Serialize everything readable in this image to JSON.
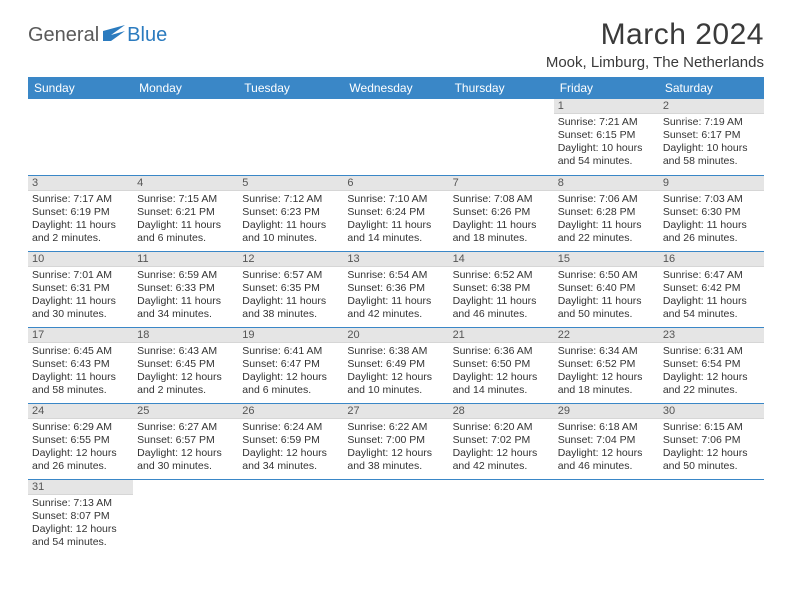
{
  "brand": {
    "part1": "General",
    "part2": "Blue"
  },
  "title": "March 2024",
  "location": "Mook, Limburg, The Netherlands",
  "colors": {
    "header_bg": "#3a87c7",
    "header_fg": "#ffffff",
    "daynum_bg": "#e5e5e5",
    "row_divider": "#3a87c7",
    "brand_gray": "#5a5a5a",
    "brand_blue": "#2b7bbf"
  },
  "weekdays": [
    "Sunday",
    "Monday",
    "Tuesday",
    "Wednesday",
    "Thursday",
    "Friday",
    "Saturday"
  ],
  "weeks": [
    [
      null,
      null,
      null,
      null,
      null,
      {
        "n": "1",
        "sr": "Sunrise: 7:21 AM",
        "ss": "Sunset: 6:15 PM",
        "dl1": "Daylight: 10 hours",
        "dl2": "and 54 minutes."
      },
      {
        "n": "2",
        "sr": "Sunrise: 7:19 AM",
        "ss": "Sunset: 6:17 PM",
        "dl1": "Daylight: 10 hours",
        "dl2": "and 58 minutes."
      }
    ],
    [
      {
        "n": "3",
        "sr": "Sunrise: 7:17 AM",
        "ss": "Sunset: 6:19 PM",
        "dl1": "Daylight: 11 hours",
        "dl2": "and 2 minutes."
      },
      {
        "n": "4",
        "sr": "Sunrise: 7:15 AM",
        "ss": "Sunset: 6:21 PM",
        "dl1": "Daylight: 11 hours",
        "dl2": "and 6 minutes."
      },
      {
        "n": "5",
        "sr": "Sunrise: 7:12 AM",
        "ss": "Sunset: 6:23 PM",
        "dl1": "Daylight: 11 hours",
        "dl2": "and 10 minutes."
      },
      {
        "n": "6",
        "sr": "Sunrise: 7:10 AM",
        "ss": "Sunset: 6:24 PM",
        "dl1": "Daylight: 11 hours",
        "dl2": "and 14 minutes."
      },
      {
        "n": "7",
        "sr": "Sunrise: 7:08 AM",
        "ss": "Sunset: 6:26 PM",
        "dl1": "Daylight: 11 hours",
        "dl2": "and 18 minutes."
      },
      {
        "n": "8",
        "sr": "Sunrise: 7:06 AM",
        "ss": "Sunset: 6:28 PM",
        "dl1": "Daylight: 11 hours",
        "dl2": "and 22 minutes."
      },
      {
        "n": "9",
        "sr": "Sunrise: 7:03 AM",
        "ss": "Sunset: 6:30 PM",
        "dl1": "Daylight: 11 hours",
        "dl2": "and 26 minutes."
      }
    ],
    [
      {
        "n": "10",
        "sr": "Sunrise: 7:01 AM",
        "ss": "Sunset: 6:31 PM",
        "dl1": "Daylight: 11 hours",
        "dl2": "and 30 minutes."
      },
      {
        "n": "11",
        "sr": "Sunrise: 6:59 AM",
        "ss": "Sunset: 6:33 PM",
        "dl1": "Daylight: 11 hours",
        "dl2": "and 34 minutes."
      },
      {
        "n": "12",
        "sr": "Sunrise: 6:57 AM",
        "ss": "Sunset: 6:35 PM",
        "dl1": "Daylight: 11 hours",
        "dl2": "and 38 minutes."
      },
      {
        "n": "13",
        "sr": "Sunrise: 6:54 AM",
        "ss": "Sunset: 6:36 PM",
        "dl1": "Daylight: 11 hours",
        "dl2": "and 42 minutes."
      },
      {
        "n": "14",
        "sr": "Sunrise: 6:52 AM",
        "ss": "Sunset: 6:38 PM",
        "dl1": "Daylight: 11 hours",
        "dl2": "and 46 minutes."
      },
      {
        "n": "15",
        "sr": "Sunrise: 6:50 AM",
        "ss": "Sunset: 6:40 PM",
        "dl1": "Daylight: 11 hours",
        "dl2": "and 50 minutes."
      },
      {
        "n": "16",
        "sr": "Sunrise: 6:47 AM",
        "ss": "Sunset: 6:42 PM",
        "dl1": "Daylight: 11 hours",
        "dl2": "and 54 minutes."
      }
    ],
    [
      {
        "n": "17",
        "sr": "Sunrise: 6:45 AM",
        "ss": "Sunset: 6:43 PM",
        "dl1": "Daylight: 11 hours",
        "dl2": "and 58 minutes."
      },
      {
        "n": "18",
        "sr": "Sunrise: 6:43 AM",
        "ss": "Sunset: 6:45 PM",
        "dl1": "Daylight: 12 hours",
        "dl2": "and 2 minutes."
      },
      {
        "n": "19",
        "sr": "Sunrise: 6:41 AM",
        "ss": "Sunset: 6:47 PM",
        "dl1": "Daylight: 12 hours",
        "dl2": "and 6 minutes."
      },
      {
        "n": "20",
        "sr": "Sunrise: 6:38 AM",
        "ss": "Sunset: 6:49 PM",
        "dl1": "Daylight: 12 hours",
        "dl2": "and 10 minutes."
      },
      {
        "n": "21",
        "sr": "Sunrise: 6:36 AM",
        "ss": "Sunset: 6:50 PM",
        "dl1": "Daylight: 12 hours",
        "dl2": "and 14 minutes."
      },
      {
        "n": "22",
        "sr": "Sunrise: 6:34 AM",
        "ss": "Sunset: 6:52 PM",
        "dl1": "Daylight: 12 hours",
        "dl2": "and 18 minutes."
      },
      {
        "n": "23",
        "sr": "Sunrise: 6:31 AM",
        "ss": "Sunset: 6:54 PM",
        "dl1": "Daylight: 12 hours",
        "dl2": "and 22 minutes."
      }
    ],
    [
      {
        "n": "24",
        "sr": "Sunrise: 6:29 AM",
        "ss": "Sunset: 6:55 PM",
        "dl1": "Daylight: 12 hours",
        "dl2": "and 26 minutes."
      },
      {
        "n": "25",
        "sr": "Sunrise: 6:27 AM",
        "ss": "Sunset: 6:57 PM",
        "dl1": "Daylight: 12 hours",
        "dl2": "and 30 minutes."
      },
      {
        "n": "26",
        "sr": "Sunrise: 6:24 AM",
        "ss": "Sunset: 6:59 PM",
        "dl1": "Daylight: 12 hours",
        "dl2": "and 34 minutes."
      },
      {
        "n": "27",
        "sr": "Sunrise: 6:22 AM",
        "ss": "Sunset: 7:00 PM",
        "dl1": "Daylight: 12 hours",
        "dl2": "and 38 minutes."
      },
      {
        "n": "28",
        "sr": "Sunrise: 6:20 AM",
        "ss": "Sunset: 7:02 PM",
        "dl1": "Daylight: 12 hours",
        "dl2": "and 42 minutes."
      },
      {
        "n": "29",
        "sr": "Sunrise: 6:18 AM",
        "ss": "Sunset: 7:04 PM",
        "dl1": "Daylight: 12 hours",
        "dl2": "and 46 minutes."
      },
      {
        "n": "30",
        "sr": "Sunrise: 6:15 AM",
        "ss": "Sunset: 7:06 PM",
        "dl1": "Daylight: 12 hours",
        "dl2": "and 50 minutes."
      }
    ],
    [
      {
        "n": "31",
        "sr": "Sunrise: 7:13 AM",
        "ss": "Sunset: 8:07 PM",
        "dl1": "Daylight: 12 hours",
        "dl2": "and 54 minutes."
      },
      null,
      null,
      null,
      null,
      null,
      null
    ]
  ]
}
